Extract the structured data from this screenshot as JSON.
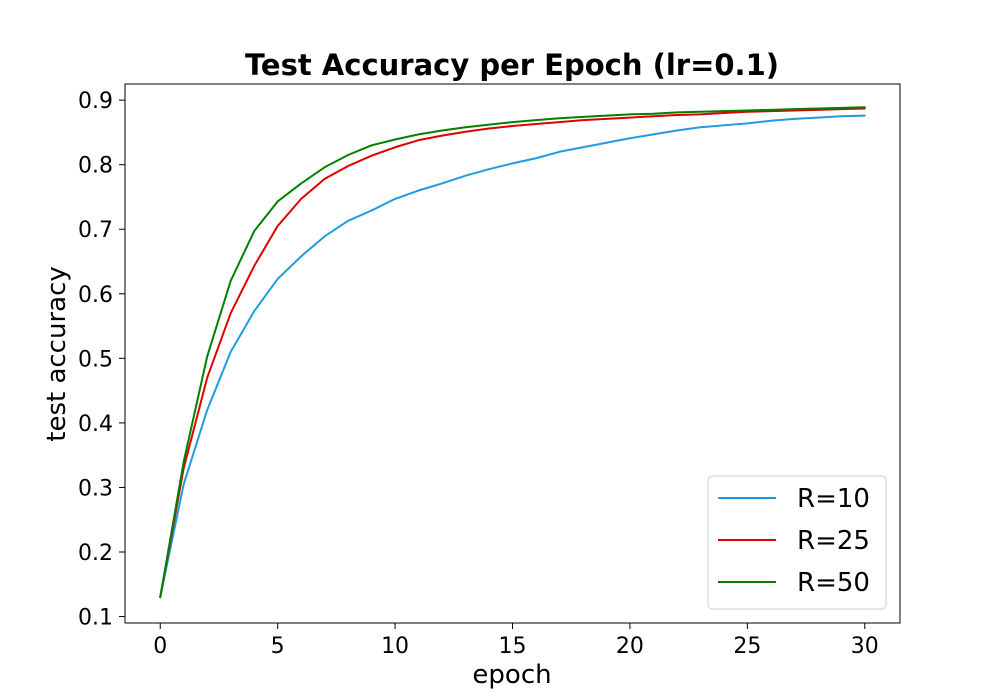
{
  "chart_data": {
    "type": "line",
    "title": "Test Accuracy per Epoch (lr=0.1)",
    "xlabel": "epoch",
    "ylabel": "test accuracy",
    "xlim": [
      -1.5,
      31.5
    ],
    "ylim": [
      0.09,
      0.925
    ],
    "xticks": [
      0,
      5,
      10,
      15,
      20,
      25,
      30
    ],
    "yticks": [
      0.1,
      0.2,
      0.3,
      0.4,
      0.5,
      0.6,
      0.7,
      0.8,
      0.9
    ],
    "x": [
      0,
      1,
      2,
      3,
      4,
      5,
      6,
      7,
      8,
      9,
      10,
      11,
      12,
      13,
      14,
      15,
      16,
      17,
      18,
      19,
      20,
      21,
      22,
      23,
      24,
      25,
      26,
      27,
      28,
      29,
      30
    ],
    "series": [
      {
        "name": "R=10",
        "color": "#1f9be0",
        "values": [
          0.13,
          0.305,
          0.42,
          0.51,
          0.573,
          0.623,
          0.658,
          0.689,
          0.713,
          0.729,
          0.747,
          0.76,
          0.771,
          0.783,
          0.793,
          0.802,
          0.81,
          0.82,
          0.827,
          0.834,
          0.841,
          0.847,
          0.853,
          0.858,
          0.861,
          0.864,
          0.868,
          0.871,
          0.873,
          0.875,
          0.876
        ]
      },
      {
        "name": "R=25",
        "color": "#e00000",
        "values": [
          0.13,
          0.33,
          0.47,
          0.57,
          0.643,
          0.705,
          0.747,
          0.778,
          0.798,
          0.814,
          0.827,
          0.838,
          0.845,
          0.851,
          0.856,
          0.86,
          0.863,
          0.866,
          0.869,
          0.871,
          0.873,
          0.875,
          0.877,
          0.878,
          0.88,
          0.882,
          0.883,
          0.884,
          0.885,
          0.886,
          0.887
        ]
      },
      {
        "name": "R=50",
        "color": "#008000",
        "values": [
          0.13,
          0.34,
          0.503,
          0.62,
          0.697,
          0.743,
          0.771,
          0.796,
          0.815,
          0.83,
          0.839,
          0.847,
          0.853,
          0.858,
          0.862,
          0.866,
          0.869,
          0.872,
          0.874,
          0.876,
          0.878,
          0.879,
          0.881,
          0.882,
          0.883,
          0.884,
          0.885,
          0.886,
          0.887,
          0.888,
          0.889
        ]
      }
    ],
    "legend_position": "lower-right",
    "grid": false
  }
}
